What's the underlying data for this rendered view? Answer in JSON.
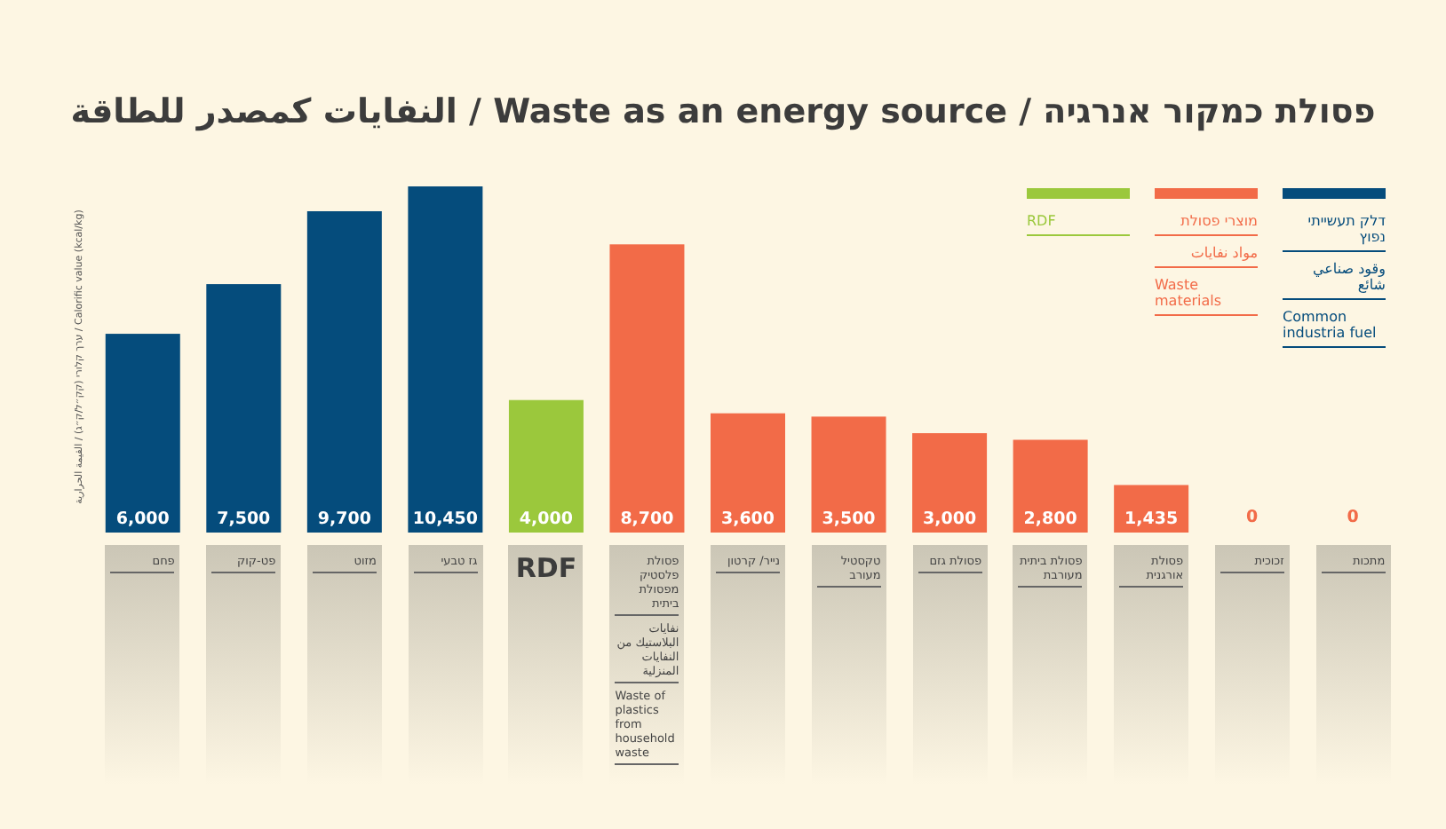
{
  "chart_data": {
    "type": "bar",
    "title": "פסולת כמקור אנרגיה / Waste as an energy source / النفايات كمصدر للطاقة",
    "ylabel": "ערך קלורי (קק״ל/ק״ג) / القيمة الحرارية / Calorific value (kcal/kg)",
    "categories": [
      "פחם",
      "פט-קוק",
      "מזוט",
      "גז טבעי",
      "RDF",
      "פסולת פלסטיק מפסולת ביתית\nنفايات البلاستيك من النفايات المنزلية\nWaste of plastics from household waste",
      "נייר/ קרטון",
      "טקסטיל מעורב",
      "פסולת גזם",
      "פסולת ביתית מעורבת",
      "פסולת אורגנית",
      "זכוכית",
      "מתכות"
    ],
    "series": [
      {
        "name": "דלק תעשייתי נפוץ\nوقود صناعي شائع\nCommon industria fuel",
        "color": "#054c7c",
        "values": [
          6000,
          7500,
          9700,
          10450,
          null,
          null,
          null,
          null,
          null,
          null,
          null,
          null,
          null
        ],
        "value_labels": [
          "6,000",
          "7,500",
          "9,700",
          "10,450",
          null,
          null,
          null,
          null,
          null,
          null,
          null,
          null,
          null
        ]
      },
      {
        "name": "מוצרי פסולת\nمواد نفايات\nWaste materials",
        "color": "#f26b48",
        "values": [
          null,
          null,
          null,
          null,
          null,
          8700,
          3600,
          3500,
          3000,
          2800,
          1435,
          0,
          0
        ],
        "value_labels": [
          null,
          null,
          null,
          null,
          null,
          "8,700",
          "3,600",
          "3,500",
          "3,000",
          "2,800",
          "1,435",
          "0",
          "0"
        ]
      },
      {
        "name": "RDF",
        "color": "#9bc83c",
        "values": [
          null,
          null,
          null,
          null,
          4000,
          null,
          null,
          null,
          null,
          null,
          null,
          null,
          null
        ],
        "value_labels": [
          null,
          null,
          null,
          null,
          "4,000",
          null,
          null,
          null,
          null,
          null,
          null,
          null,
          null
        ]
      }
    ],
    "legend": "top right",
    "grid": false
  }
}
